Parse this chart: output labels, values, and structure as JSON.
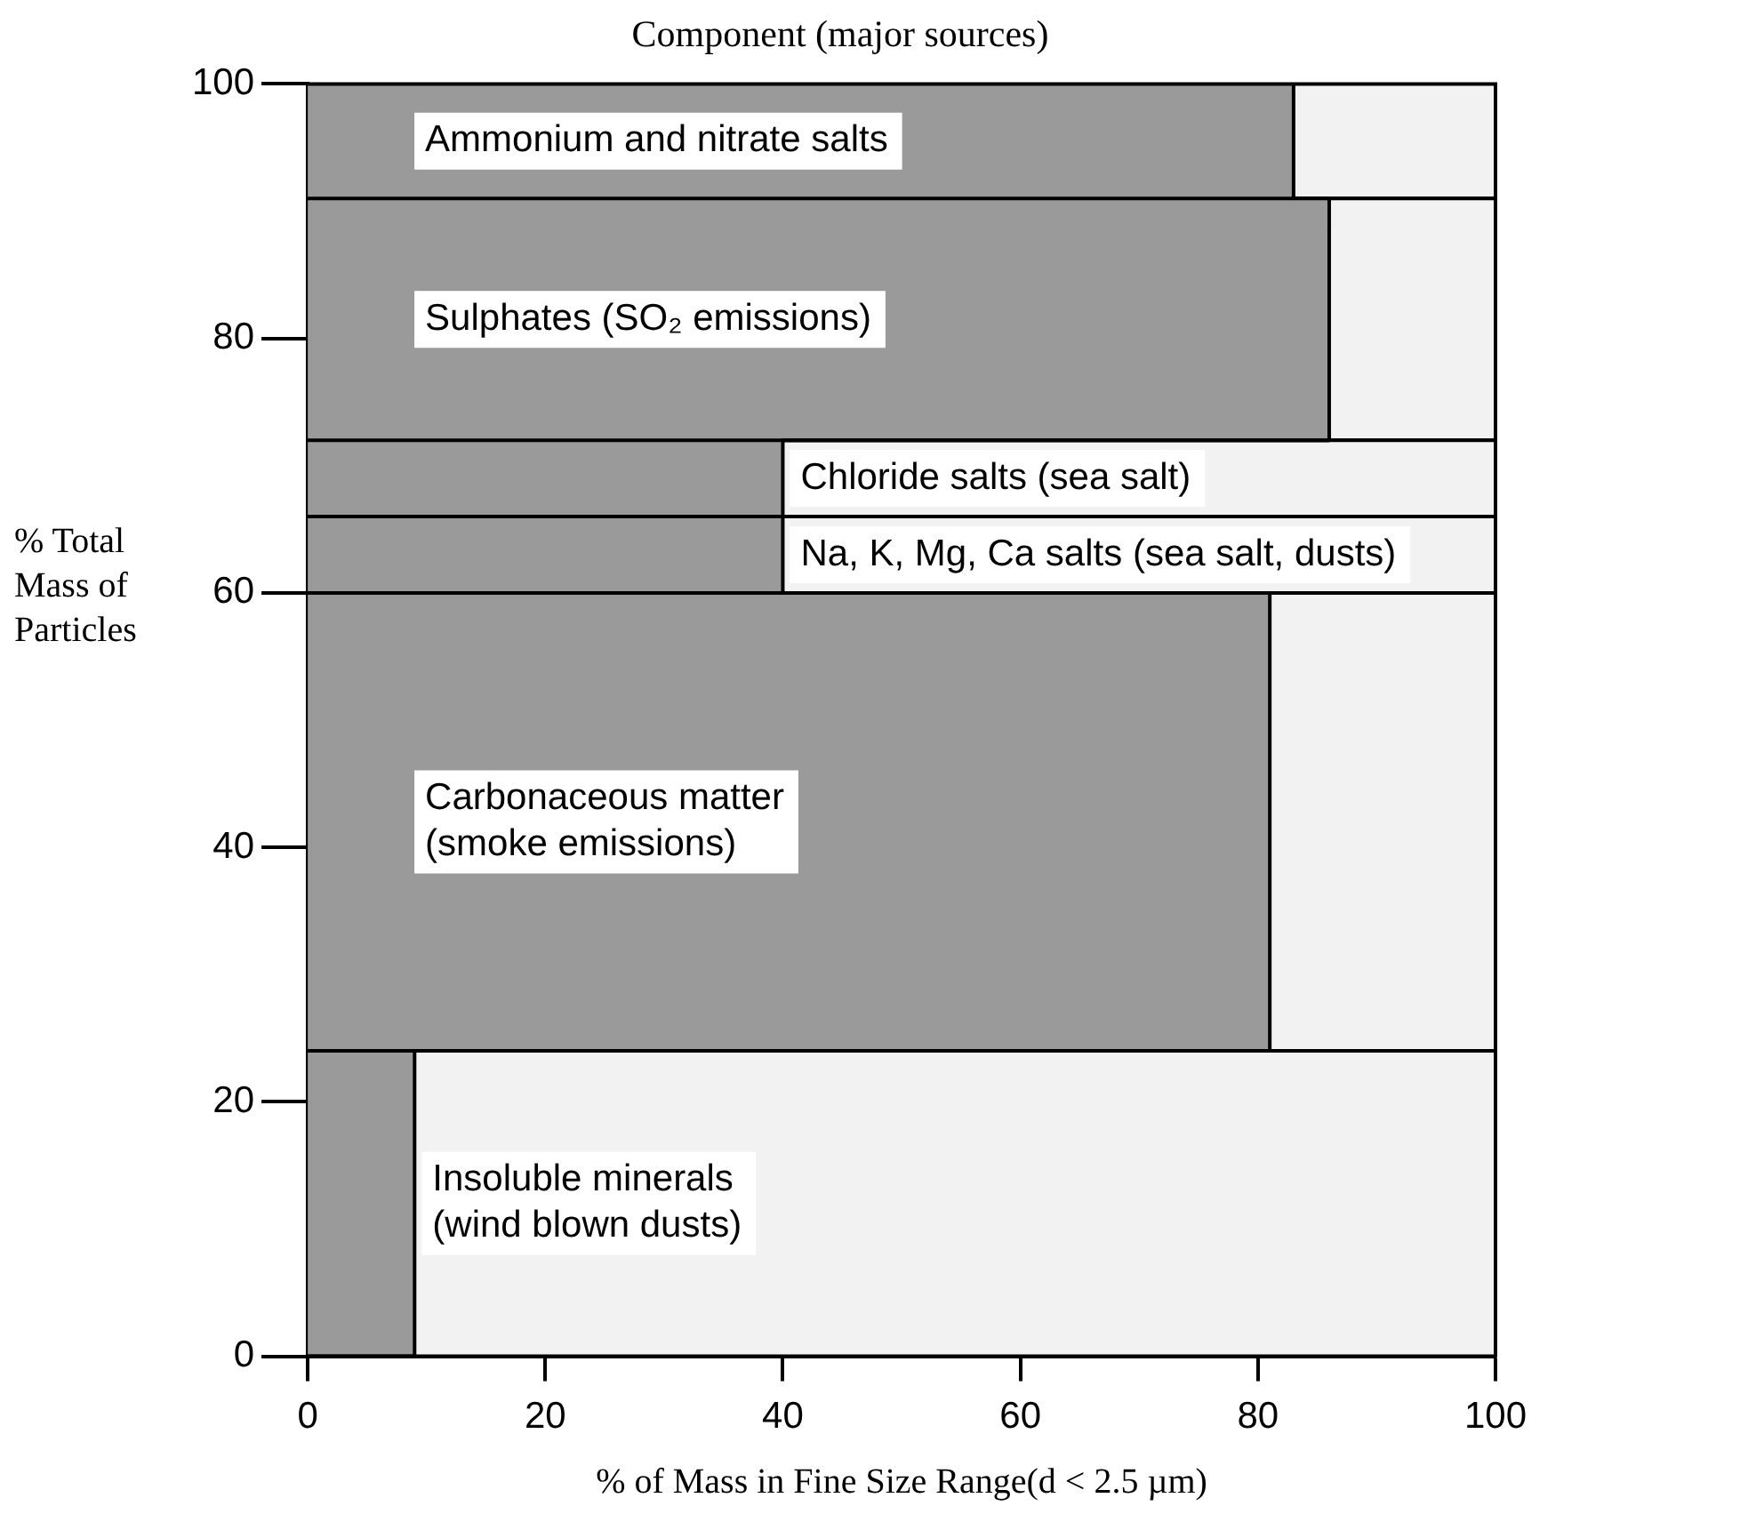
{
  "chart_data": {
    "type": "area",
    "title": "Component (major sources)",
    "xlabel": "% of Mass in Fine Size Range(d < 2.5 µm)",
    "ylabel": "% Total\nMass of\nParticles",
    "series": [
      {
        "type": "area",
        "color": "#9a9a9a",
        "x": [
          0,
          83,
          83,
          86,
          86,
          40,
          40,
          81,
          81,
          9,
          9,
          0
        ],
        "values": [
          100,
          100,
          91,
          91,
          72,
          72,
          60,
          60,
          24,
          24,
          0,
          0
        ]
      }
    ],
    "bands": [
      {
        "axis": "y",
        "from": 91,
        "to": 100,
        "label": "Ammonium and nitrate salts",
        "color": "#f2f2f2"
      },
      {
        "axis": "y",
        "from": 72,
        "to": 91,
        "label": "Sulphates (SO₂ emissions)",
        "color": "#f2f2f2"
      },
      {
        "axis": "y",
        "from": 66,
        "to": 72,
        "label": "Chloride salts (sea salt)",
        "color": "#f2f2f2"
      },
      {
        "axis": "y",
        "from": 60,
        "to": 66,
        "label": "Na, K, Mg, Ca salts (sea salt, dusts)",
        "color": "#f2f2f2"
      },
      {
        "axis": "y",
        "from": 24,
        "to": 60,
        "label": "Carbonaceous matter\n(smoke emissions)",
        "color": "#f2f2f2"
      },
      {
        "axis": "y",
        "from": 0,
        "to": 24,
        "label": "Insoluble minerals\n(wind blown dusts)",
        "color": "#f2f2f2"
      }
    ],
    "xlim": [
      0,
      100
    ],
    "xticks": [
      0,
      20,
      40,
      60,
      80,
      100
    ],
    "ylim": [
      0,
      100
    ],
    "yticks": [
      0,
      20,
      40,
      60,
      80,
      100
    ],
    "marker": "none"
  }
}
